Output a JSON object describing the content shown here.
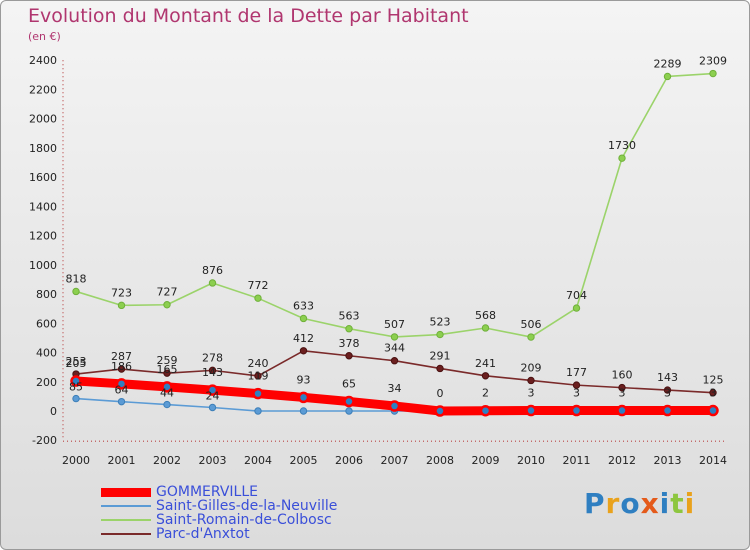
{
  "title": "Evolution du Montant de la Dette par Habitant",
  "subtitle": "(en €)",
  "logo_text": "Proxiti",
  "colors": {
    "GOMMERVILLE": "#ff0000",
    "Saint-Gilles-de-la-Neuville": "#5b9bd5",
    "Saint-Romain-de-Colbosc": "#9bd36a",
    "Parc-d'Anxtot": "#7a2a2a"
  },
  "chart_data": {
    "type": "line",
    "title": "Evolution du Montant de la Dette par Habitant",
    "subtitle": "(en €)",
    "xlabel": "",
    "ylabel": "",
    "ylim": [
      -200,
      2400
    ],
    "yticks": [
      -200,
      0,
      200,
      400,
      600,
      800,
      1000,
      1200,
      1400,
      1600,
      1800,
      2000,
      2200,
      2400
    ],
    "grid": false,
    "legend": "bottom-left",
    "x": [
      "2000",
      "2001",
      "2002",
      "2003",
      "2004",
      "2005",
      "2006",
      "2007",
      "2008",
      "2009",
      "2010",
      "2011",
      "2012",
      "2013",
      "2014"
    ],
    "series": [
      {
        "name": "GOMMERVILLE",
        "values": [
          205,
          186,
          165,
          143,
          119,
          93,
          65,
          34,
          0,
          2,
          3,
          3,
          3,
          3,
          3
        ]
      },
      {
        "name": "Saint-Gilles-de-la-Neuville",
        "values": [
          85,
          64,
          44,
          24,
          0,
          0,
          0,
          0,
          0,
          0,
          0,
          0,
          0,
          0,
          0
        ]
      },
      {
        "name": "Saint-Romain-de-Colbosc",
        "values": [
          818,
          723,
          727,
          876,
          772,
          633,
          563,
          507,
          523,
          568,
          506,
          704,
          1730,
          2289,
          2309
        ]
      },
      {
        "name": "Parc-d'Anxtot",
        "values": [
          253,
          287,
          259,
          278,
          240,
          412,
          378,
          344,
          291,
          241,
          209,
          177,
          160,
          143,
          125
        ]
      }
    ]
  }
}
